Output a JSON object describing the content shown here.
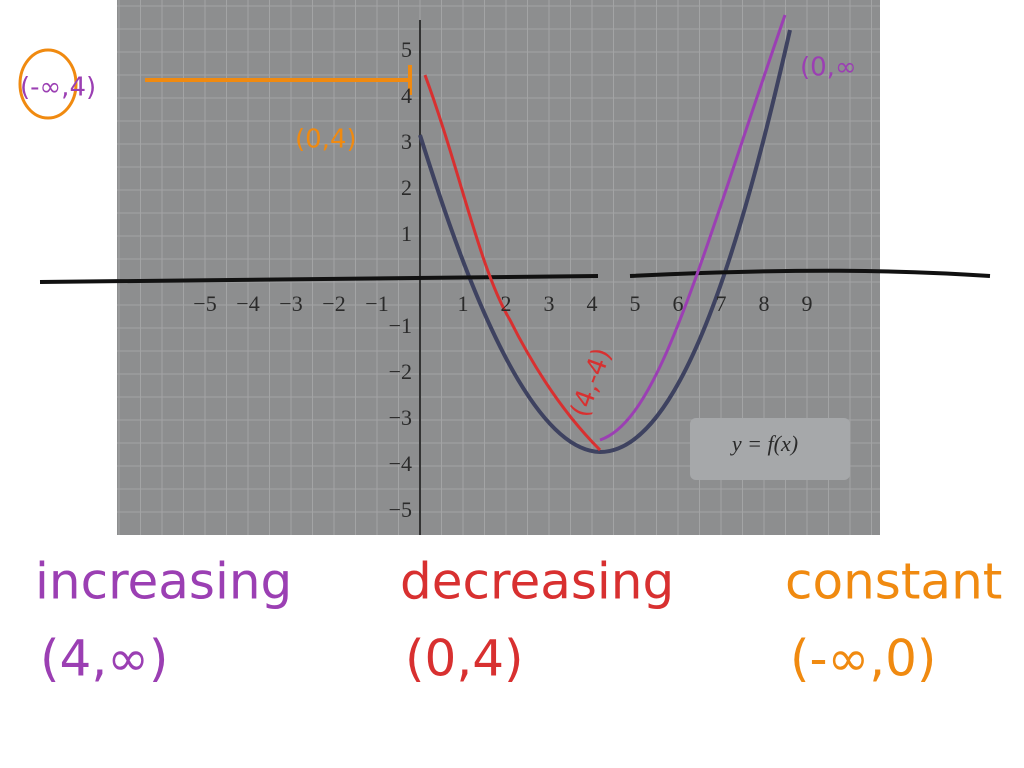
{
  "graph": {
    "x_ticks": [
      "−5",
      "−4",
      "−3",
      "−2",
      "−1",
      "1",
      "2",
      "3",
      "4",
      "5",
      "6",
      "7",
      "8",
      "9"
    ],
    "y_ticks": [
      "5",
      "4",
      "3",
      "2",
      "1",
      "−1",
      "−2",
      "−3",
      "−4",
      "−5"
    ],
    "curve_label": "y = f(x)"
  },
  "annotations": {
    "top_left": "(-∞,4)",
    "start_point": "(0,4)",
    "vertex": "(4,-4)",
    "top_right": "(0,∞"
  },
  "summary": [
    {
      "label": "increasing",
      "interval": "(4,∞)"
    },
    {
      "label": "decreasing",
      "interval": "(0,4)"
    },
    {
      "label": "constant",
      "interval": "(-∞,0)"
    }
  ]
}
